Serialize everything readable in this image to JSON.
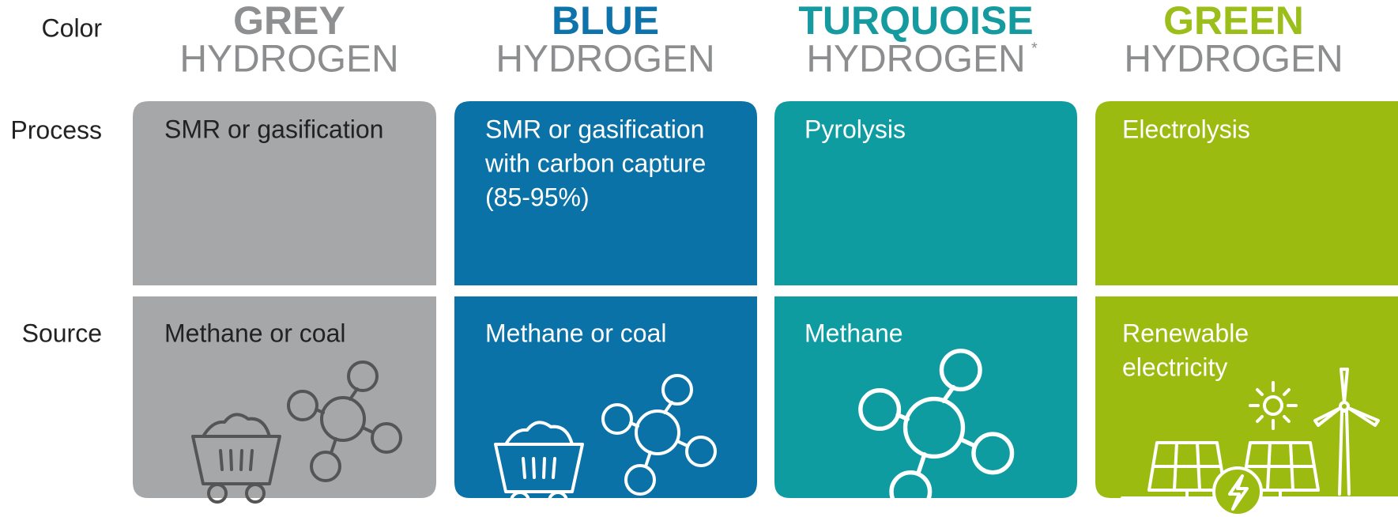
{
  "row_labels": {
    "color": "Color",
    "process": "Process",
    "source": "Source"
  },
  "columns": [
    {
      "name": "GREY",
      "suffix": "HYDROGEN",
      "process": [
        "SMR or gasification"
      ],
      "source": [
        "Methane or coal"
      ]
    },
    {
      "name": "BLUE",
      "suffix": "HYDROGEN",
      "process": [
        "SMR or gasification",
        "with carbon capture",
        "(85-95%)"
      ],
      "source": [
        "Methane or coal"
      ]
    },
    {
      "name": "TURQUOISE",
      "suffix": "HYDROGEN",
      "footnote_mark": "*",
      "process": [
        "Pyrolysis"
      ],
      "source": [
        "Methane"
      ]
    },
    {
      "name": "GREEN",
      "suffix": "HYDROGEN",
      "process": [
        "Electrolysis"
      ],
      "source": [
        "Renewable",
        "electricity"
      ]
    }
  ]
}
